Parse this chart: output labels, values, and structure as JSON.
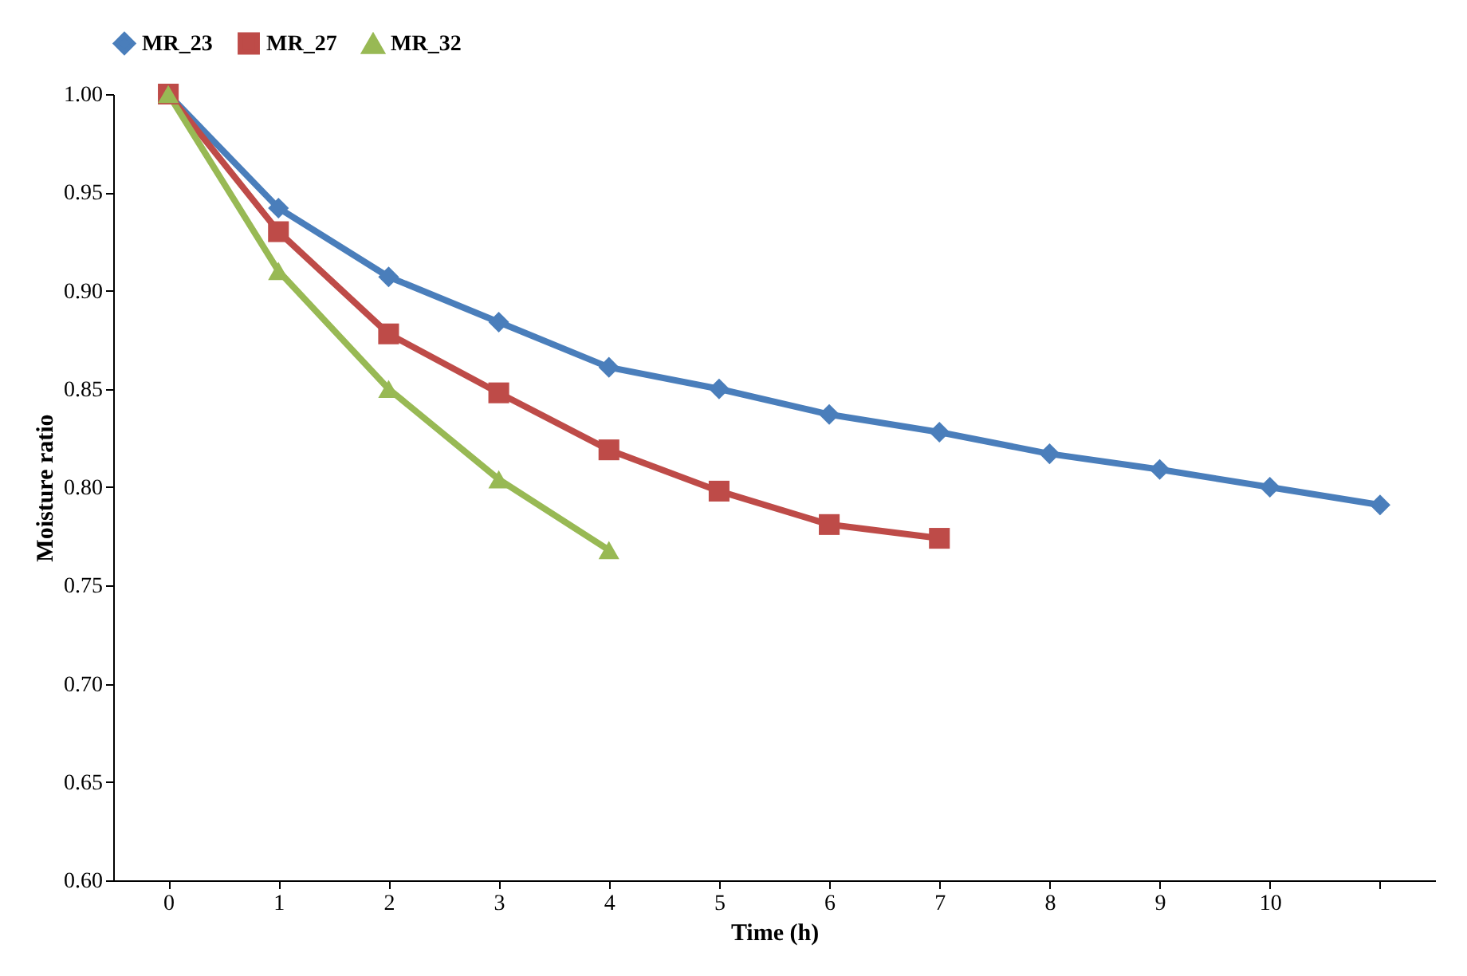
{
  "chart_data": {
    "type": "line",
    "xlabel": "Time (h)",
    "ylabel": "Moisture  ratio",
    "categories": [
      "0",
      "1",
      "2",
      "3",
      "4",
      "5",
      "6",
      "7",
      "8",
      "9",
      "10",
      null
    ],
    "ylim": [
      0.6,
      1.0
    ],
    "yticks": [
      {
        "value": 0.6,
        "label": "0.60"
      },
      0.65,
      {
        "value": 0.7,
        "label": "0.70"
      },
      0.75,
      {
        "value": 0.8,
        "label": "0.80"
      },
      0.85,
      {
        "value": 0.9,
        "label": "0.90"
      },
      0.95,
      {
        "value": 1.0,
        "label": "1.00"
      }
    ],
    "grid": false,
    "legend": "top",
    "line_style": "solid",
    "series": [
      {
        "name": "MR_23",
        "color": "#4a7ebb",
        "marker": "diamond",
        "values": [
          1.0,
          0.942,
          0.907,
          0.884,
          0.861,
          0.85,
          0.837,
          0.828,
          0.817,
          0.809,
          0.8,
          0.791
        ]
      },
      {
        "name": "MR_27",
        "color": "#be4b48",
        "marker": "square",
        "values": [
          1.0,
          0.93,
          0.878,
          0.848,
          0.819,
          0.798,
          0.781,
          0.774,
          null,
          null,
          null,
          null
        ]
      },
      {
        "name": "MR_32",
        "color": "#98b954",
        "marker": "triangle",
        "values": [
          1.0,
          0.91,
          0.85,
          0.804,
          0.768,
          null,
          null,
          null,
          null,
          null,
          null,
          null
        ]
      }
    ]
  }
}
